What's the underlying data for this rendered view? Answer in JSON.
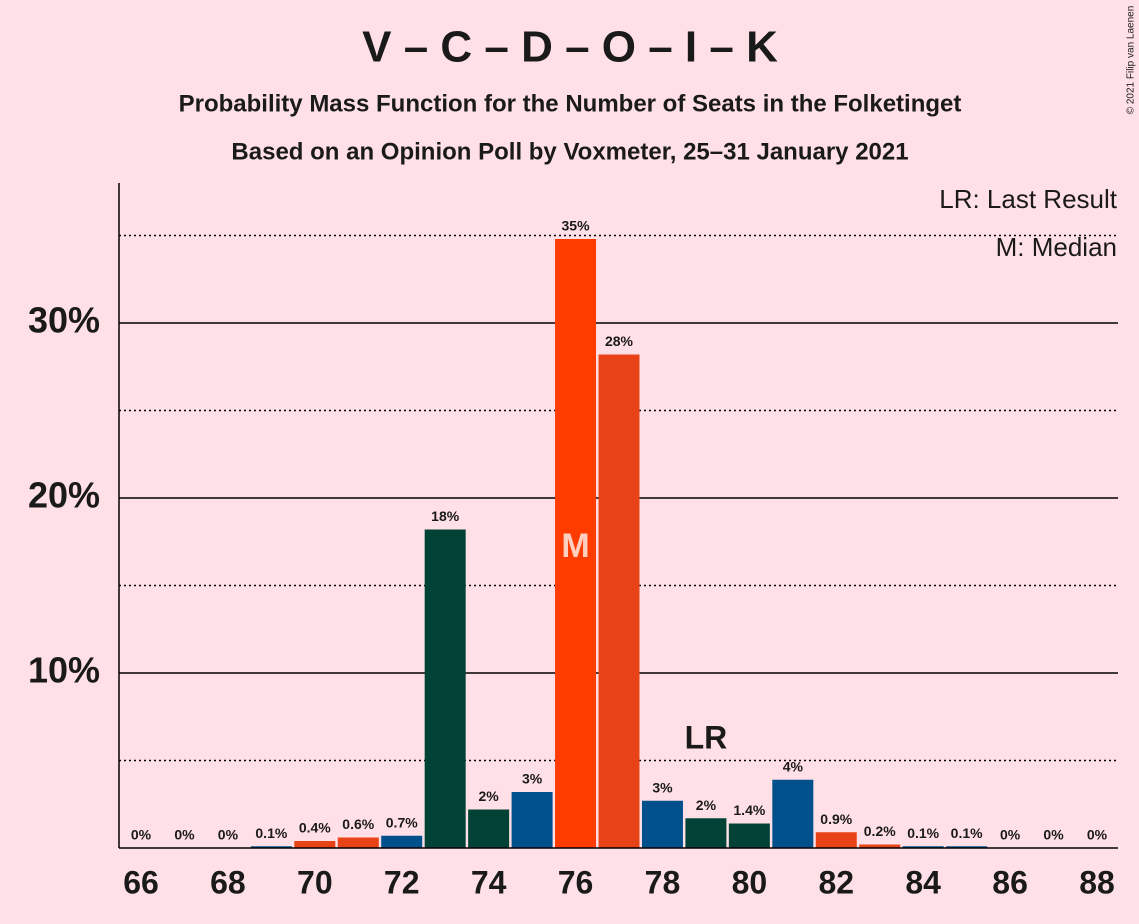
{
  "chart_data": {
    "type": "bar",
    "title": "V – C – D – O – I – K",
    "subtitle": "Probability Mass Function for the Number of Seats in the Folketinget",
    "subtitle2": "Based on an Opinion Poll by Voxmeter, 25–31 January 2021",
    "copyright": "© 2021 Filip van Laenen",
    "legend": [
      "LR: Last Result",
      "M: Median"
    ],
    "categories": [
      66,
      null,
      68,
      null,
      70,
      null,
      72,
      null,
      74,
      null,
      76,
      null,
      78,
      null,
      80,
      null,
      82,
      null,
      84,
      null,
      86,
      null,
      88
    ],
    "values": [
      0,
      0,
      0,
      0.1,
      0.4,
      0.6,
      0.7,
      18.2,
      2.2,
      3.2,
      34.8,
      28.2,
      2.7,
      1.7,
      1.4,
      3.9,
      0.9,
      0.2,
      0.1,
      0.1,
      0,
      0,
      0
    ],
    "value_labels": [
      "0%",
      "0%",
      "0%",
      "0.1%",
      "0.4%",
      "0.6%",
      "0.7%",
      "18%",
      "2%",
      "3%",
      "35%",
      "28%",
      "3%",
      "2%",
      "1.4%",
      "4%",
      "0.9%",
      "0.2%",
      "0.1%",
      "0.1%",
      "0%",
      "0%",
      "0%"
    ],
    "colors": [
      "#00508c",
      "#00508c",
      "#00508c",
      "#00508c",
      "#e84316",
      "#e84316",
      "#00508c",
      "#004236",
      "#004236",
      "#00508c",
      "#ff3c00",
      "#e84316",
      "#00508c",
      "#004236",
      "#004236",
      "#00508c",
      "#e84316",
      "#e84316",
      "#00508c",
      "#00508c",
      "#00508c",
      "#00508c",
      "#00508c"
    ],
    "annotations": [
      {
        "text": "M",
        "index": 10
      },
      {
        "text": "LR",
        "index": 13
      }
    ],
    "ylim": [
      0,
      38
    ],
    "yticks": [
      {
        "value": 10,
        "label": "10%"
      },
      {
        "value": 20,
        "label": "20%"
      },
      {
        "value": 30,
        "label": "30%"
      }
    ],
    "minor_yticks": [
      5,
      15,
      25,
      35
    ],
    "grid": true
  }
}
